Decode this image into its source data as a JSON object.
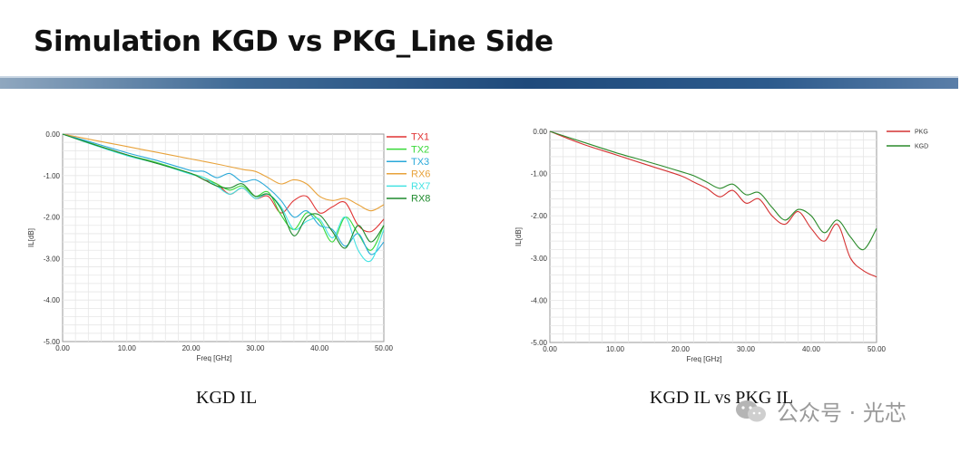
{
  "slide": {
    "title": "Simulation KGD vs PKG_Line Side"
  },
  "captions": {
    "left": "KGD IL",
    "right": "KGD IL vs PKG IL"
  },
  "watermark": {
    "text": "公众号 · 光芯",
    "icon": "wechat-icon"
  },
  "chart_data": [
    {
      "type": "line",
      "xlabel": "Freq [GHz]",
      "ylabel": "IL[dB]",
      "xlim": [
        0,
        50
      ],
      "ylim": [
        -5,
        0
      ],
      "x_ticks": [
        "0.00",
        "10.00",
        "20.00",
        "30.00",
        "40.00",
        "50.00"
      ],
      "y_ticks": [
        "0.00",
        "-1.00",
        "-2.00",
        "-3.00",
        "-4.00",
        "-5.00"
      ],
      "grid": true,
      "legend_position": "top-right",
      "series": [
        {
          "name": "TX1",
          "color": "#e03434",
          "x": [
            0,
            5,
            10,
            15,
            20,
            22,
            24,
            26,
            28,
            30,
            32,
            34,
            36,
            38,
            40,
            42,
            44,
            46,
            48,
            50
          ],
          "y": [
            0,
            -0.25,
            -0.5,
            -0.72,
            -0.95,
            -1.1,
            -1.2,
            -1.45,
            -1.3,
            -1.55,
            -1.5,
            -1.9,
            -1.6,
            -1.5,
            -1.9,
            -1.75,
            -1.65,
            -2.2,
            -2.35,
            -2.05
          ]
        },
        {
          "name": "TX2",
          "color": "#39d939",
          "x": [
            0,
            5,
            10,
            15,
            20,
            22,
            24,
            26,
            28,
            30,
            32,
            34,
            36,
            38,
            40,
            42,
            44,
            46,
            48,
            50
          ],
          "y": [
            0,
            -0.25,
            -0.5,
            -0.7,
            -0.95,
            -1.05,
            -1.2,
            -1.35,
            -1.25,
            -1.5,
            -1.4,
            -1.95,
            -2.3,
            -1.9,
            -2.1,
            -2.6,
            -2.0,
            -2.4,
            -2.8,
            -2.2
          ]
        },
        {
          "name": "TX3",
          "color": "#2aa9d9",
          "x": [
            0,
            5,
            10,
            15,
            20,
            22,
            24,
            26,
            28,
            30,
            32,
            34,
            36,
            38,
            40,
            42,
            44,
            46,
            48,
            50
          ],
          "y": [
            0,
            -0.22,
            -0.45,
            -0.65,
            -0.88,
            -0.9,
            -1.05,
            -0.95,
            -1.15,
            -1.1,
            -1.3,
            -1.6,
            -2.0,
            -1.85,
            -2.2,
            -2.3,
            -2.7,
            -2.4,
            -2.9,
            -2.6
          ]
        },
        {
          "name": "RX6",
          "color": "#e8a23a",
          "x": [
            0,
            5,
            10,
            15,
            20,
            24,
            28,
            30,
            32,
            34,
            36,
            38,
            40,
            42,
            44,
            46,
            48,
            50
          ],
          "y": [
            0,
            -0.15,
            -0.3,
            -0.45,
            -0.6,
            -0.72,
            -0.85,
            -0.9,
            -1.05,
            -1.2,
            -1.1,
            -1.2,
            -1.5,
            -1.6,
            -1.55,
            -1.7,
            -1.85,
            -1.7
          ]
        },
        {
          "name": "RX7",
          "color": "#44e3e3",
          "x": [
            0,
            5,
            10,
            15,
            20,
            22,
            24,
            26,
            28,
            30,
            32,
            34,
            36,
            38,
            40,
            42,
            44,
            46,
            48,
            50
          ],
          "y": [
            0,
            -0.27,
            -0.52,
            -0.72,
            -0.97,
            -1.05,
            -1.25,
            -1.45,
            -1.3,
            -1.55,
            -1.45,
            -1.75,
            -2.3,
            -2.1,
            -2.05,
            -2.5,
            -2.0,
            -2.8,
            -3.05,
            -2.3
          ]
        },
        {
          "name": "RX8",
          "color": "#1f8a2d",
          "x": [
            0,
            5,
            10,
            15,
            20,
            22,
            24,
            26,
            28,
            30,
            32,
            34,
            36,
            38,
            40,
            42,
            44,
            46,
            48,
            50
          ],
          "y": [
            0,
            -0.26,
            -0.5,
            -0.72,
            -0.95,
            -1.1,
            -1.25,
            -1.3,
            -1.2,
            -1.5,
            -1.45,
            -1.8,
            -2.45,
            -2.0,
            -1.95,
            -2.35,
            -2.75,
            -2.2,
            -2.6,
            -2.2
          ]
        }
      ]
    },
    {
      "type": "line",
      "xlabel": "Freq [GHz]",
      "ylabel": "IL[dB]",
      "xlim": [
        0,
        50
      ],
      "ylim": [
        -5,
        0
      ],
      "x_ticks": [
        "0.00",
        "10.00",
        "20.00",
        "30.00",
        "40.00",
        "50.00"
      ],
      "y_ticks": [
        "0.00",
        "-1.00",
        "-2.00",
        "-3.00",
        "-4.00",
        "-5.00"
      ],
      "grid": true,
      "legend_position": "top-right",
      "series": [
        {
          "name": "PKG",
          "color": "#d43232",
          "x": [
            0,
            5,
            10,
            15,
            20,
            22,
            24,
            26,
            28,
            30,
            32,
            34,
            36,
            38,
            40,
            42,
            44,
            46,
            48,
            50
          ],
          "y": [
            0,
            -0.3,
            -0.55,
            -0.8,
            -1.05,
            -1.2,
            -1.35,
            -1.55,
            -1.4,
            -1.7,
            -1.6,
            -2.0,
            -2.2,
            -1.9,
            -2.3,
            -2.6,
            -2.2,
            -3.0,
            -3.3,
            -3.45
          ]
        },
        {
          "name": "KGD",
          "color": "#2a8a2a",
          "x": [
            0,
            5,
            10,
            15,
            20,
            22,
            24,
            26,
            28,
            30,
            32,
            34,
            36,
            38,
            40,
            42,
            44,
            46,
            48,
            50
          ],
          "y": [
            0,
            -0.25,
            -0.5,
            -0.72,
            -0.95,
            -1.05,
            -1.2,
            -1.35,
            -1.25,
            -1.5,
            -1.45,
            -1.8,
            -2.1,
            -1.85,
            -2.0,
            -2.4,
            -2.1,
            -2.5,
            -2.8,
            -2.3
          ]
        }
      ]
    }
  ]
}
